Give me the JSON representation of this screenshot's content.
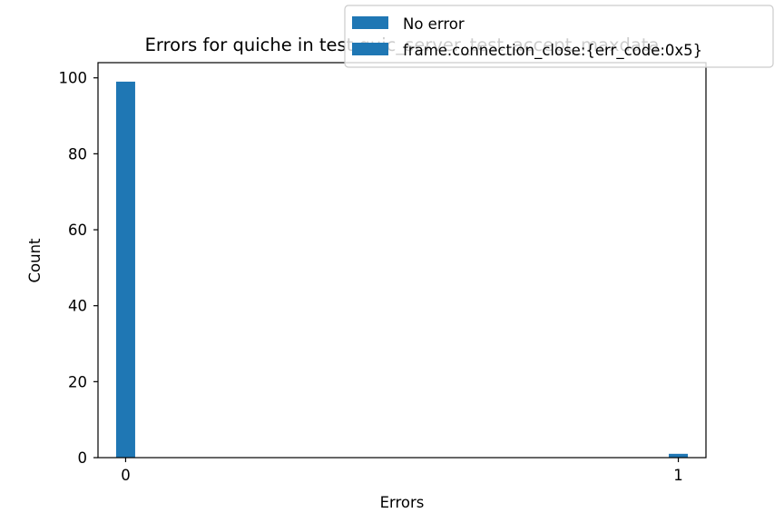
{
  "chart_data": {
    "type": "bar",
    "title": "Errors for quiche in test quic_server_test_accept_maxdata",
    "xlabel": "Errors",
    "ylabel": "Count",
    "x_ticks": [
      0,
      1
    ],
    "y_ticks": [
      0,
      20,
      40,
      60,
      80,
      100
    ],
    "xlim": [
      -0.05,
      1.05
    ],
    "ylim": [
      0,
      104
    ],
    "grid": false,
    "legend_position": "top-right",
    "series": [
      {
        "name": "No error",
        "color": "#1f77b4",
        "bars": [
          {
            "x": 0,
            "value": 99
          }
        ]
      },
      {
        "name": "frame.connection_close:{err_code:0x5}",
        "color": "#1f77b4",
        "bars": [
          {
            "x": 1,
            "value": 1
          }
        ]
      }
    ]
  }
}
